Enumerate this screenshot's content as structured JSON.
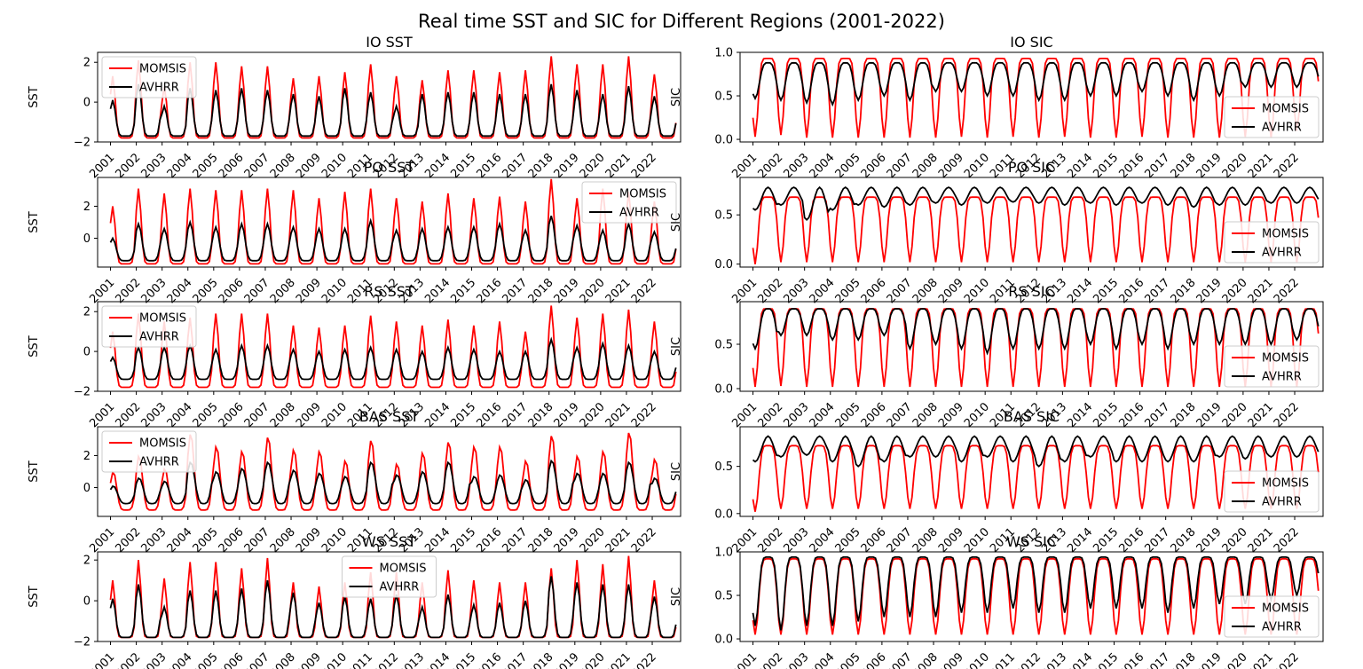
{
  "figure": {
    "suptitle": "Real time SST and SIC for Different Regions (2001-2022)"
  },
  "colors": {
    "MOMSIS": "#ff0000",
    "AVHRR": "#000000"
  },
  "chart_data": [
    {
      "type": "line",
      "title": "IO SST",
      "ylabel": "SST",
      "ylim": [
        -2.0,
        2.5
      ],
      "yticks": [
        -2,
        0,
        2
      ],
      "xlim": [
        2000.5,
        2023.1
      ],
      "xticks": [
        "2001",
        "2002",
        "2003",
        "2004",
        "2005",
        "2006",
        "2007",
        "2008",
        "2009",
        "2010",
        "2011",
        "2012",
        "2013",
        "2014",
        "2015",
        "2016",
        "2017",
        "2018",
        "2019",
        "2020",
        "2021",
        "2022"
      ],
      "legend": "upper left",
      "series_names": [
        "MOMSIS",
        "AVHRR"
      ],
      "x_start": 2001.0,
      "x_end": 2022.9,
      "samples_per_year": 12,
      "series": [
        {
          "name": "MOMSIS",
          "min": -1.8,
          "peak_month": 1.0,
          "sharpness": 5,
          "peaks": [
            1.3,
            2.1,
            0.8,
            2.0,
            2.0,
            1.8,
            1.8,
            1.2,
            1.3,
            1.5,
            1.9,
            1.3,
            1.1,
            1.6,
            1.6,
            1.5,
            1.6,
            2.3,
            1.9,
            1.9,
            2.3,
            1.4
          ]
        },
        {
          "name": "AVHRR",
          "min": -1.7,
          "peak_month": 1.0,
          "sharpness": 4,
          "peaks": [
            0.1,
            0.9,
            -0.2,
            0.7,
            0.6,
            0.7,
            0.6,
            0.4,
            0.3,
            0.7,
            0.5,
            -0.2,
            0.4,
            0.5,
            0.5,
            0.4,
            0.4,
            0.9,
            0.6,
            0.4,
            0.8,
            0.3
          ]
        }
      ]
    },
    {
      "type": "line",
      "title": "IO SIC",
      "ylabel": "SIC",
      "ylim": [
        -0.03,
        1.0
      ],
      "yticks": [
        0.0,
        0.5,
        1.0
      ],
      "xlim": [
        2000.5,
        2023.1
      ],
      "xticks": [
        "2001",
        "2002",
        "2003",
        "2004",
        "2005",
        "2006",
        "2007",
        "2008",
        "2009",
        "2010",
        "2011",
        "2012",
        "2013",
        "2014",
        "2015",
        "2016",
        "2017",
        "2018",
        "2019",
        "2020",
        "2021",
        "2022"
      ],
      "legend": "lower right",
      "series_names": [
        "MOMSIS",
        "AVHRR"
      ],
      "x_start": 2001.0,
      "x_end": 2022.9,
      "samples_per_year": 12,
      "series": [
        {
          "name": "MOMSIS",
          "max": 0.93,
          "trough_month": 1.0,
          "sharpness": 4,
          "troughs": [
            0.03,
            0.05,
            0.02,
            0.02,
            0.02,
            0.02,
            0.02,
            0.02,
            0.03,
            0.02,
            0.03,
            0.02,
            0.03,
            0.02,
            0.02,
            0.03,
            0.02,
            0.02,
            0.02,
            0.03,
            0.02,
            0.1
          ]
        },
        {
          "name": "AVHRR",
          "max": 0.88,
          "trough_month": 1.0,
          "sharpness": 2,
          "troughs": [
            0.47,
            0.45,
            0.42,
            0.4,
            0.45,
            0.5,
            0.45,
            0.55,
            0.55,
            0.5,
            0.5,
            0.45,
            0.45,
            0.5,
            0.5,
            0.55,
            0.5,
            0.45,
            0.5,
            0.6,
            0.6,
            0.6
          ]
        }
      ]
    },
    {
      "type": "line",
      "title": "PO SST",
      "ylabel": "SST",
      "ylim": [
        -1.8,
        3.8
      ],
      "yticks": [
        0,
        2
      ],
      "xlim": [
        2000.5,
        2023.1
      ],
      "xticks": [
        "2001",
        "2002",
        "2003",
        "2004",
        "2005",
        "2006",
        "2007",
        "2008",
        "2009",
        "2010",
        "2011",
        "2012",
        "2013",
        "2014",
        "2015",
        "2016",
        "2017",
        "2018",
        "2019",
        "2020",
        "2021",
        "2022"
      ],
      "legend": "upper right",
      "series_names": [
        "MOMSIS",
        "AVHRR"
      ],
      "x_start": 2001.0,
      "x_end": 2022.9,
      "samples_per_year": 12,
      "series": [
        {
          "name": "MOMSIS",
          "min": -1.6,
          "peak_month": 1.0,
          "sharpness": 5,
          "peaks": [
            2.0,
            3.1,
            2.8,
            3.1,
            3.0,
            3.0,
            3.1,
            3.0,
            2.5,
            2.9,
            3.1,
            2.5,
            2.3,
            2.8,
            2.5,
            2.6,
            2.3,
            3.7,
            2.5,
            3.1,
            2.9,
            2.3
          ]
        },
        {
          "name": "AVHRR",
          "min": -1.4,
          "peak_month": 1.0,
          "sharpness": 3,
          "peaks": [
            0.0,
            0.9,
            0.6,
            1.0,
            0.7,
            0.9,
            0.9,
            0.7,
            0.6,
            0.6,
            1.1,
            0.5,
            0.6,
            0.7,
            0.7,
            0.9,
            0.5,
            1.4,
            0.8,
            0.5,
            0.9,
            0.4
          ]
        }
      ]
    },
    {
      "type": "line",
      "title": "PO SIC",
      "ylabel": "SIC",
      "ylim": [
        -0.03,
        0.88
      ],
      "yticks": [
        0.0,
        0.5
      ],
      "xlim": [
        2000.5,
        2023.1
      ],
      "xticks": [
        "2001",
        "2002",
        "2003",
        "2004",
        "2005",
        "2006",
        "2007",
        "2008",
        "2009",
        "2010",
        "2011",
        "2012",
        "2013",
        "2014",
        "2015",
        "2016",
        "2017",
        "2018",
        "2019",
        "2020",
        "2021",
        "2022"
      ],
      "legend": "lower right",
      "series_names": [
        "MOMSIS",
        "AVHRR"
      ],
      "x_start": 2001.0,
      "x_end": 2022.9,
      "samples_per_year": 12,
      "series": [
        {
          "name": "MOMSIS",
          "max": 0.68,
          "trough_month": 1.0,
          "sharpness": 4,
          "troughs": [
            0.0,
            0.02,
            0.02,
            0.02,
            0.02,
            0.02,
            0.02,
            0.02,
            0.02,
            0.02,
            0.02,
            0.02,
            0.02,
            0.02,
            0.02,
            0.02,
            0.02,
            0.02,
            0.02,
            0.02,
            0.02,
            0.02
          ]
        },
        {
          "name": "AVHRR",
          "max": 0.78,
          "trough_month": 1.0,
          "sharpness": 1,
          "troughs": [
            0.55,
            0.6,
            0.45,
            0.55,
            0.6,
            0.58,
            0.6,
            0.62,
            0.6,
            0.62,
            0.63,
            0.62,
            0.6,
            0.62,
            0.6,
            0.62,
            0.6,
            0.58,
            0.6,
            0.6,
            0.62,
            0.62
          ]
        }
      ]
    },
    {
      "type": "line",
      "title": "RS SST",
      "ylabel": "SST",
      "ylim": [
        -2.0,
        2.5
      ],
      "yticks": [
        -2,
        0,
        2
      ],
      "xlim": [
        2000.5,
        2023.1
      ],
      "xticks": [
        "2001",
        "2002",
        "2003",
        "2004",
        "2005",
        "2006",
        "2007",
        "2008",
        "2009",
        "2010",
        "2011",
        "2012",
        "2013",
        "2014",
        "2015",
        "2016",
        "2017",
        "2018",
        "2019",
        "2020",
        "2021",
        "2022"
      ],
      "legend": "upper left",
      "series_names": [
        "MOMSIS",
        "AVHRR"
      ],
      "x_start": 2001.0,
      "x_end": 2022.9,
      "samples_per_year": 12,
      "series": [
        {
          "name": "MOMSIS",
          "min": -1.8,
          "peak_month": 1.0,
          "sharpness": 5,
          "peaks": [
            1.0,
            1.9,
            1.5,
            1.7,
            1.9,
            1.9,
            1.9,
            1.3,
            1.2,
            1.3,
            1.8,
            1.5,
            1.3,
            1.6,
            1.3,
            1.5,
            1.0,
            2.3,
            1.7,
            1.9,
            2.1,
            1.5
          ]
        },
        {
          "name": "AVHRR",
          "min": -1.4,
          "peak_month": 1.0,
          "sharpness": 3,
          "peaks": [
            -0.3,
            0.2,
            0.2,
            0.3,
            0.1,
            0.3,
            0.3,
            0.1,
            0.0,
            0.1,
            0.2,
            0.1,
            0.0,
            0.2,
            0.1,
            0.0,
            0.0,
            0.6,
            0.2,
            0.4,
            0.3,
            0.0
          ]
        }
      ]
    },
    {
      "type": "line",
      "title": "RS SIC",
      "ylabel": "SIC",
      "ylim": [
        -0.03,
        0.98
      ],
      "yticks": [
        0.0,
        0.5
      ],
      "xlim": [
        2000.5,
        2023.1
      ],
      "xticks": [
        "2001",
        "2002",
        "2003",
        "2004",
        "2005",
        "2006",
        "2007",
        "2008",
        "2009",
        "2010",
        "2011",
        "2012",
        "2013",
        "2014",
        "2015",
        "2016",
        "2017",
        "2018",
        "2019",
        "2020",
        "2021",
        "2022"
      ],
      "legend": "lower right",
      "series_names": [
        "MOMSIS",
        "AVHRR"
      ],
      "x_start": 2001.0,
      "x_end": 2022.9,
      "samples_per_year": 12,
      "series": [
        {
          "name": "MOMSIS",
          "max": 0.9,
          "trough_month": 1.0,
          "sharpness": 4,
          "troughs": [
            0.02,
            0.03,
            0.02,
            0.02,
            0.02,
            0.02,
            0.02,
            0.02,
            0.02,
            0.02,
            0.02,
            0.02,
            0.02,
            0.02,
            0.02,
            0.02,
            0.02,
            0.02,
            0.02,
            0.02,
            0.02,
            0.02
          ]
        },
        {
          "name": "AVHRR",
          "max": 0.9,
          "trough_month": 1.0,
          "sharpness": 2,
          "troughs": [
            0.45,
            0.6,
            0.6,
            0.55,
            0.55,
            0.6,
            0.45,
            0.5,
            0.45,
            0.4,
            0.45,
            0.45,
            0.45,
            0.5,
            0.45,
            0.5,
            0.45,
            0.5,
            0.5,
            0.5,
            0.5,
            0.55
          ]
        }
      ]
    },
    {
      "type": "line",
      "title": "BAS SST",
      "ylabel": "SST",
      "ylim": [
        -1.8,
        3.8
      ],
      "yticks": [
        0,
        2
      ],
      "xlim": [
        2000.5,
        2023.1
      ],
      "xticks": [
        "2001",
        "2002",
        "2003",
        "2004",
        "2005",
        "2006",
        "2007",
        "2008",
        "2009",
        "2010",
        "2011",
        "2012",
        "2013",
        "2014",
        "2015",
        "2016",
        "2017",
        "2018",
        "2019",
        "2020",
        "2021",
        "2022"
      ],
      "legend": "upper left",
      "series_names": [
        "MOMSIS",
        "AVHRR"
      ],
      "x_start": 2001.0,
      "x_end": 2022.9,
      "samples_per_year": 12,
      "series": [
        {
          "name": "MOMSIS",
          "min": -1.4,
          "peak_month": 1.3,
          "sharpness": 3,
          "peaks": [
            1.0,
            2.0,
            1.2,
            3.4,
            2.6,
            2.3,
            3.2,
            2.4,
            2.3,
            1.7,
            3.0,
            1.5,
            2.2,
            2.9,
            2.6,
            2.6,
            1.7,
            3.3,
            2.0,
            2.3,
            3.5,
            1.8
          ]
        },
        {
          "name": "AVHRR",
          "min": -1.0,
          "peak_month": 1.3,
          "sharpness": 2,
          "peaks": [
            0.1,
            0.6,
            0.4,
            1.6,
            1.0,
            1.2,
            1.6,
            1.1,
            0.9,
            0.7,
            1.6,
            0.8,
            1.0,
            1.6,
            0.7,
            0.8,
            0.5,
            1.7,
            0.9,
            0.9,
            1.6,
            0.6
          ]
        }
      ]
    },
    {
      "type": "line",
      "title": "BAS SIC",
      "ylabel": "SIC",
      "ylim": [
        -0.03,
        0.92
      ],
      "yticks": [
        0.0,
        0.5
      ],
      "xlim": [
        2000.5,
        2023.1
      ],
      "xticks": [
        "2001",
        "2002",
        "2003",
        "2004",
        "2005",
        "2006",
        "2007",
        "2008",
        "2009",
        "2010",
        "2011",
        "2012",
        "2013",
        "2014",
        "2015",
        "2016",
        "2017",
        "2018",
        "2019",
        "2020",
        "2021",
        "2022"
      ],
      "legend": "lower right",
      "series_names": [
        "MOMSIS",
        "AVHRR"
      ],
      "x_start": 2001.0,
      "x_end": 2022.9,
      "samples_per_year": 12,
      "series": [
        {
          "name": "MOMSIS",
          "max": 0.72,
          "trough_month": 1.0,
          "sharpness": 3,
          "troughs": [
            0.02,
            0.05,
            0.05,
            0.05,
            0.05,
            0.05,
            0.05,
            0.05,
            0.05,
            0.05,
            0.05,
            0.05,
            0.05,
            0.05,
            0.05,
            0.05,
            0.05,
            0.05,
            0.05,
            0.05,
            0.05,
            0.05
          ]
        },
        {
          "name": "AVHRR",
          "max": 0.82,
          "trough_month": 1.0,
          "sharpness": 1,
          "troughs": [
            0.55,
            0.6,
            0.62,
            0.55,
            0.5,
            0.55,
            0.6,
            0.6,
            0.55,
            0.6,
            0.55,
            0.5,
            0.55,
            0.6,
            0.55,
            0.55,
            0.55,
            0.55,
            0.6,
            0.58,
            0.6,
            0.6
          ]
        }
      ]
    },
    {
      "type": "line",
      "title": "WS SST",
      "ylabel": "SST",
      "ylim": [
        -2.0,
        2.4
      ],
      "yticks": [
        -2,
        0,
        2
      ],
      "xlim": [
        2000.5,
        2023.1
      ],
      "xticks": [
        "2001",
        "2002",
        "2003",
        "2004",
        "2005",
        "2006",
        "2007",
        "2008",
        "2009",
        "2010",
        "2011",
        "2012",
        "2013",
        "2014",
        "2015",
        "2016",
        "2017",
        "2018",
        "2019",
        "2020",
        "2021",
        "2022"
      ],
      "legend": "upper center",
      "series_names": [
        "MOMSIS",
        "AVHRR"
      ],
      "x_start": 2001.0,
      "x_end": 2022.9,
      "samples_per_year": 12,
      "series": [
        {
          "name": "MOMSIS",
          "min": -1.8,
          "peak_month": 1.0,
          "sharpness": 6,
          "peaks": [
            1.0,
            2.0,
            1.1,
            1.9,
            1.9,
            1.6,
            2.1,
            0.9,
            0.7,
            0.9,
            1.4,
            1.4,
            0.9,
            1.5,
            1.0,
            0.9,
            0.9,
            1.6,
            2.0,
            1.8,
            2.2,
            1.0
          ]
        },
        {
          "name": "AVHRR",
          "min": -1.8,
          "peak_month": 1.0,
          "sharpness": 4,
          "peaks": [
            0.1,
            0.8,
            -0.3,
            0.5,
            0.5,
            0.6,
            1.0,
            0.4,
            -0.1,
            0.2,
            0.1,
            0.3,
            -0.3,
            0.3,
            -0.2,
            -0.1,
            0.0,
            1.2,
            0.9,
            0.8,
            0.8,
            0.2
          ]
        }
      ]
    },
    {
      "type": "line",
      "title": "WS SIC",
      "ylabel": "SIC",
      "ylim": [
        -0.03,
        1.0
      ],
      "yticks": [
        0.0,
        0.5,
        1.0
      ],
      "xlim": [
        2000.5,
        2023.1
      ],
      "xticks": [
        "2001",
        "2002",
        "2003",
        "2004",
        "2005",
        "2006",
        "2007",
        "2008",
        "2009",
        "2010",
        "2011",
        "2012",
        "2013",
        "2014",
        "2015",
        "2016",
        "2017",
        "2018",
        "2019",
        "2020",
        "2021",
        "2022"
      ],
      "legend": "lower right",
      "series_names": [
        "MOMSIS",
        "AVHRR"
      ],
      "x_start": 2001.0,
      "x_end": 2022.9,
      "samples_per_year": 12,
      "series": [
        {
          "name": "MOMSIS",
          "max": 0.92,
          "trough_month": 1.0,
          "sharpness": 3,
          "troughs": [
            0.05,
            0.05,
            0.05,
            0.05,
            0.05,
            0.05,
            0.05,
            0.05,
            0.05,
            0.05,
            0.05,
            0.05,
            0.05,
            0.05,
            0.05,
            0.05,
            0.05,
            0.05,
            0.05,
            0.05,
            0.05,
            0.05
          ]
        },
        {
          "name": "AVHRR",
          "max": 0.94,
          "trough_month": 1.0,
          "sharpness": 3,
          "troughs": [
            0.15,
            0.1,
            0.15,
            0.15,
            0.2,
            0.25,
            0.25,
            0.25,
            0.3,
            0.3,
            0.35,
            0.3,
            0.3,
            0.35,
            0.35,
            0.35,
            0.3,
            0.35,
            0.4,
            0.4,
            0.45,
            0.5
          ]
        }
      ]
    }
  ]
}
